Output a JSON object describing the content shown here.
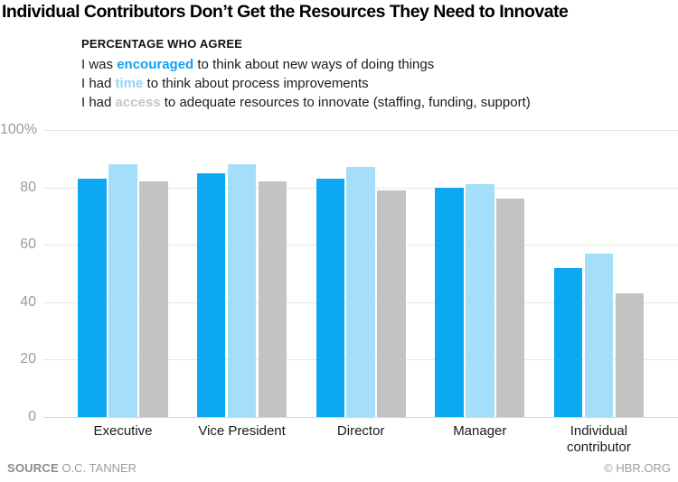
{
  "title": "Individual Contributors Don’t Get the Resources They Need to Innovate",
  "legend": {
    "heading": "PERCENTAGE WHO AGREE",
    "items": [
      {
        "pre": "I was ",
        "key": "encouraged",
        "post": " to think about new ways of doing things",
        "color": "#0EA4EF"
      },
      {
        "pre": "I had ",
        "key": "time",
        "post": " to think about process improvements",
        "color": "#8FD4F8"
      },
      {
        "pre": "I had ",
        "key": "access",
        "post": " to adequate resources to innovate (staffing, funding, support)",
        "color": "#C5C5C5"
      }
    ]
  },
  "chart_data": {
    "type": "bar",
    "title": "Individual Contributors Don’t Get the Resources They Need to Innovate",
    "subtitle": "PERCENTAGE WHO AGREE",
    "categories": [
      "Executive",
      "Vice President",
      "Director",
      "Manager",
      "Individual contributor"
    ],
    "series": [
      {
        "name": "encouraged",
        "color": "#0CA8F2",
        "values": [
          83,
          85,
          83,
          80,
          52
        ]
      },
      {
        "name": "time",
        "color": "#A5DEF9",
        "values": [
          88,
          88,
          87,
          81,
          57
        ]
      },
      {
        "name": "access",
        "color": "#C3C3C3",
        "values": [
          82,
          82,
          79,
          76,
          43
        ]
      }
    ],
    "xlabel": "",
    "ylabel": "",
    "ylim": [
      0,
      100
    ],
    "yticks": [
      {
        "value": 100,
        "label": "100%"
      },
      {
        "value": 80,
        "label": "80"
      },
      {
        "value": 60,
        "label": "60"
      },
      {
        "value": 40,
        "label": "40"
      },
      {
        "value": 20,
        "label": "20"
      },
      {
        "value": 0,
        "label": "0"
      }
    ],
    "grid": true,
    "legend_position": "top"
  },
  "footer": {
    "source_label": "SOURCE",
    "source_value": "O.C. TANNER",
    "credit": "© HBR.ORG"
  }
}
